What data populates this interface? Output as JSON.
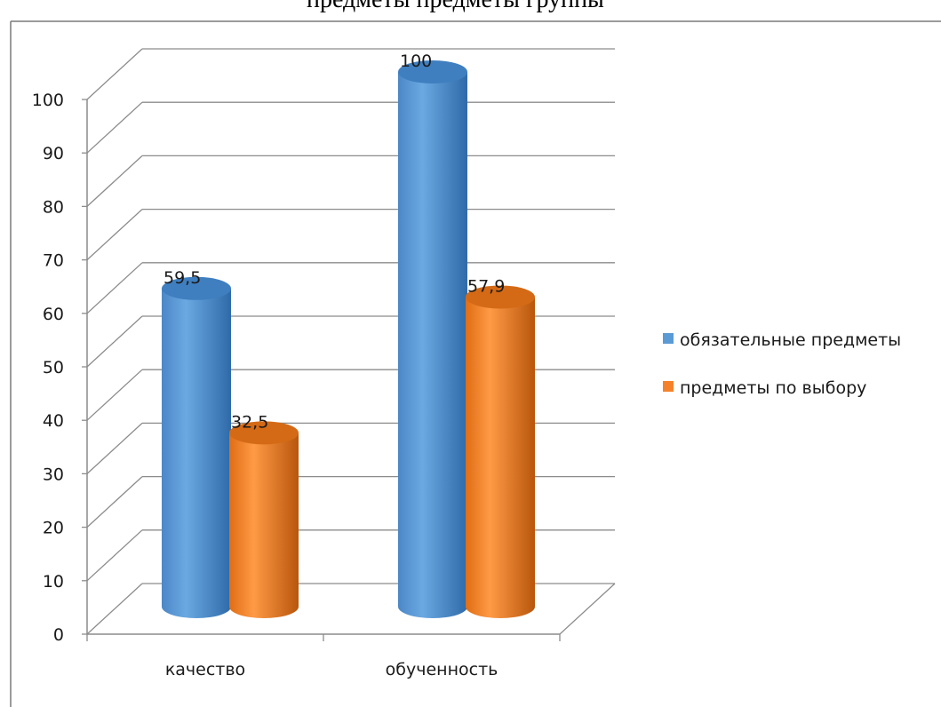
{
  "chart_data": {
    "type": "bar",
    "title": "предметы  предметы  группы",
    "categories": [
      "качество",
      "обученность"
    ],
    "series": [
      {
        "name": "обязательные предметы",
        "values": [
          59.5,
          100
        ],
        "labels": [
          "59,5",
          "100"
        ]
      },
      {
        "name": "предметы по выбору",
        "values": [
          32.5,
          57.9
        ],
        "labels": [
          "32,5",
          "57,9"
        ]
      }
    ],
    "ylim": [
      0,
      100
    ],
    "yticks": [
      "0",
      "10",
      "20",
      "30",
      "40",
      "50",
      "60",
      "70",
      "80",
      "90",
      "100"
    ],
    "grid": true,
    "legend_position": "right",
    "style": "3d-cylinder"
  },
  "colors": {
    "series_0": "#5b9bd5",
    "series_0_dark": "#2e6fb0",
    "series_0_top": "#3f7fc0",
    "series_1": "#f5822a",
    "series_1_dark": "#c35a0c",
    "series_1_top": "#d46a16",
    "grid": "#8c8c8c",
    "frame": "#7a7a7a"
  }
}
